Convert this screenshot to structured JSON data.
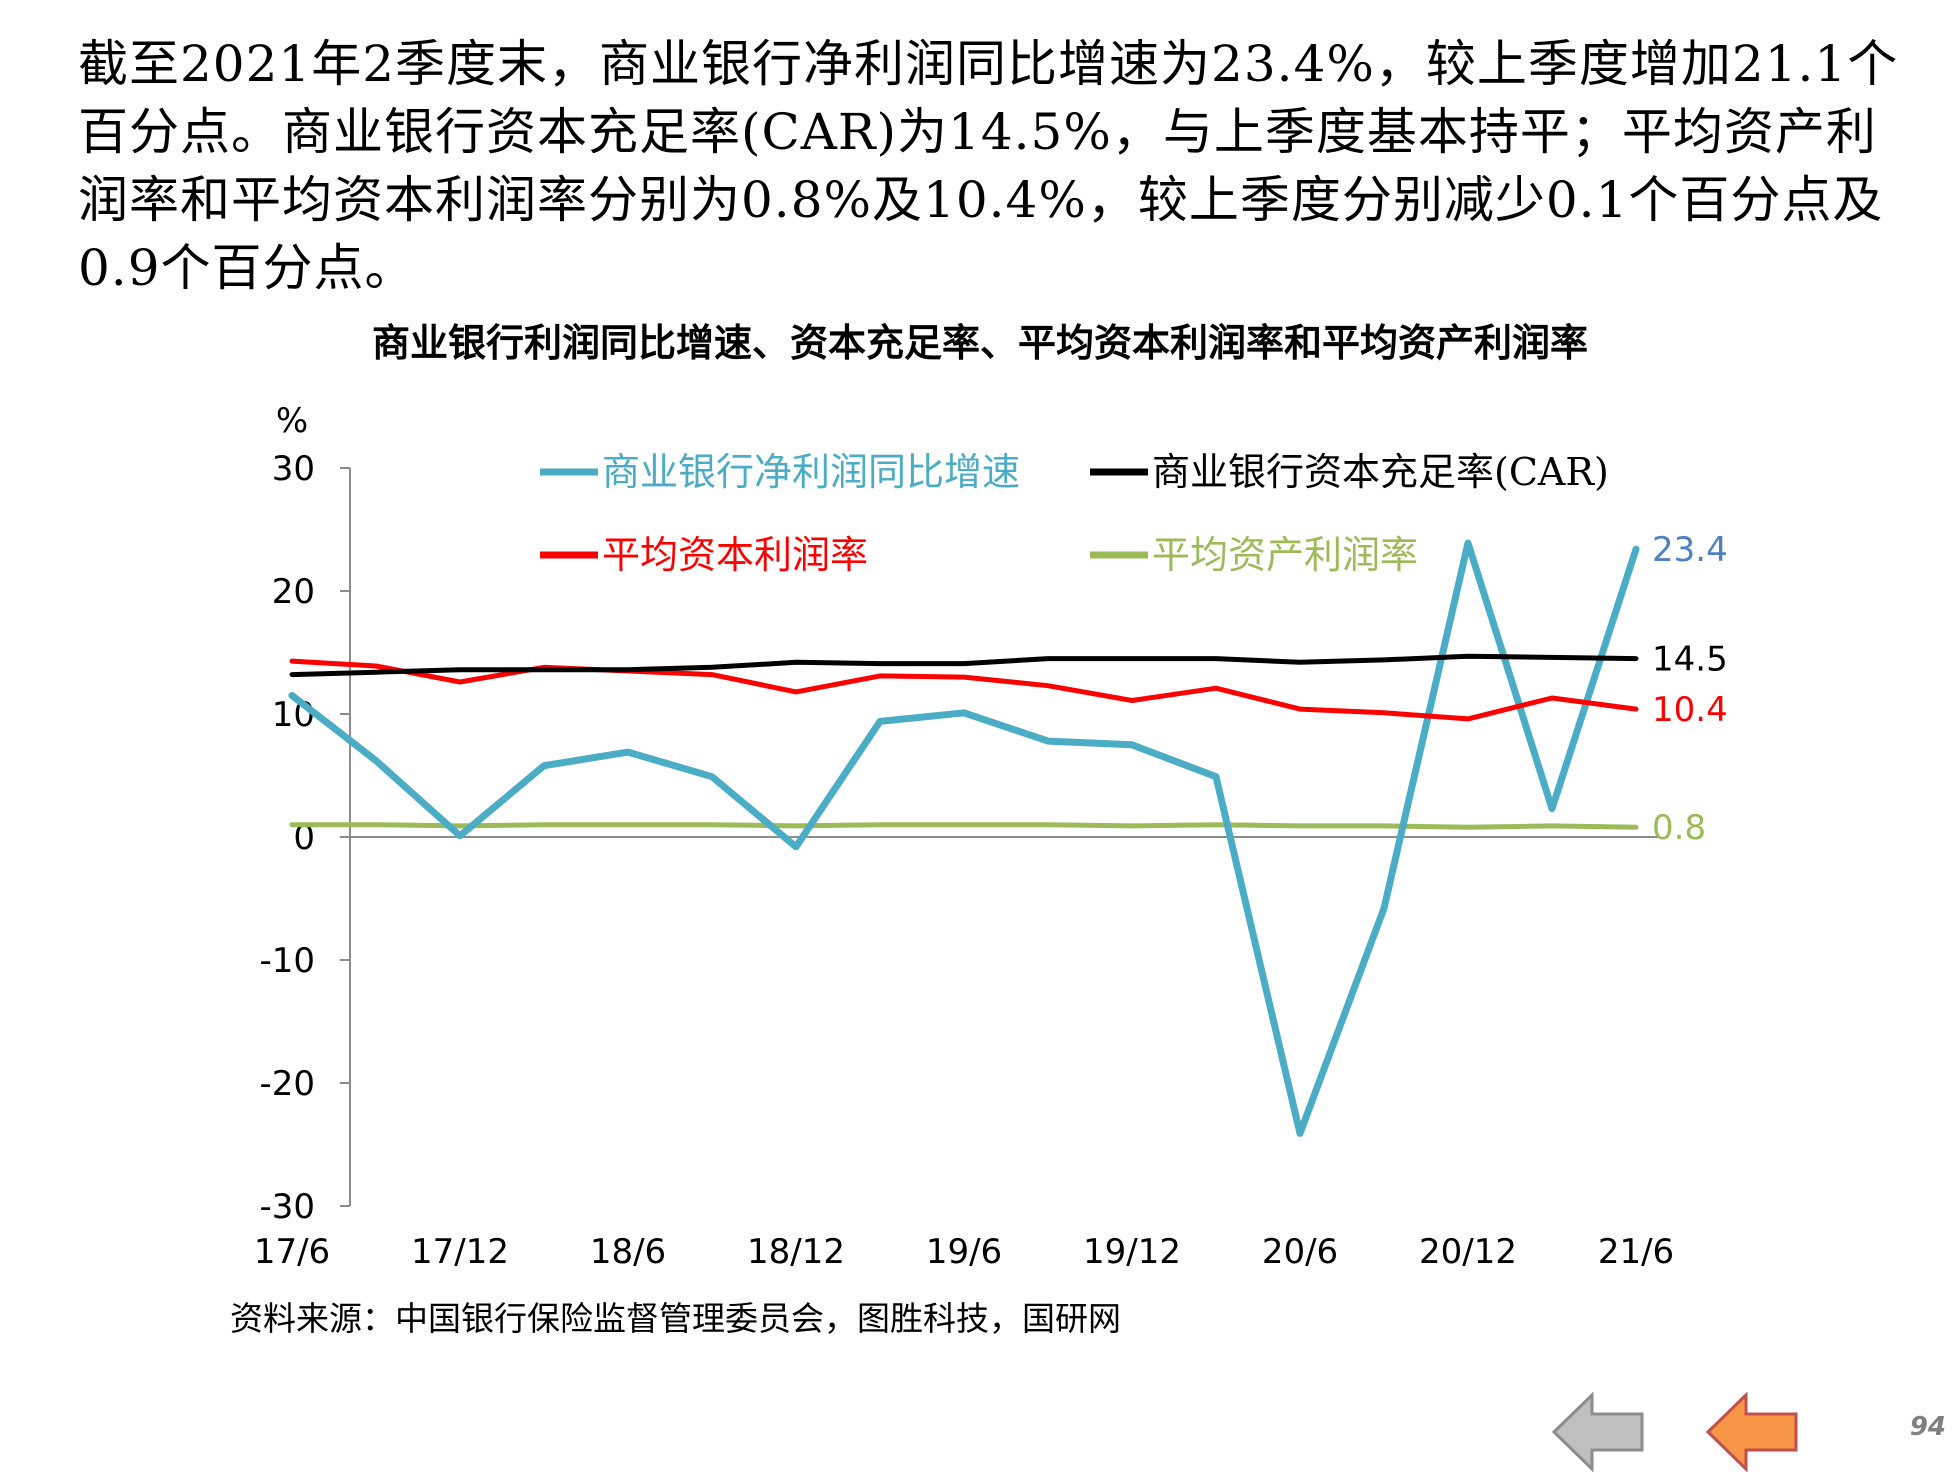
{
  "text": {
    "paragraph": "截至2021年2季度末，商业银行净利润同比增速为23.4%，较上季度增加21.1个百分点。商业银行资本充足率(CAR)为14.5%，与上季度基本持平；平均资产利润率和平均资本利润率分别为0.8%及10.4%，较上季度分别减少0.1个百分点及0.9个百分点。",
    "source": "资料来源：中国银行保险监督管理委员会，图胜科技，国研网",
    "page_number": "94"
  },
  "nav": {
    "prev_icon": "arrow-left-gray",
    "back_icon": "arrow-left-orange"
  },
  "chart_data": {
    "type": "line",
    "title": "商业银行利润同比增速、资本充足率、平均资本利润率和平均资产利润率",
    "ylabel": "%",
    "ylim": [
      -30,
      30
    ],
    "yticks": [
      30,
      20,
      10,
      0,
      -10,
      -20,
      -30
    ],
    "grid": false,
    "legend_position": "top",
    "x": [
      "17/6",
      "17/9",
      "17/12",
      "18/3",
      "18/6",
      "18/9",
      "18/12",
      "19/3",
      "19/6",
      "19/9",
      "19/12",
      "20/3",
      "20/6",
      "20/9",
      "20/12",
      "21/3",
      "21/6"
    ],
    "xtick_labels": [
      "17/6",
      "17/12",
      "18/6",
      "18/12",
      "19/6",
      "19/12",
      "20/6",
      "20/12",
      "21/6"
    ],
    "series": [
      {
        "name": "商业银行净利润同比增速",
        "color": "#4bacc6",
        "values": [
          11.5,
          6.2,
          0.1,
          5.8,
          6.9,
          4.9,
          -0.8,
          9.4,
          10.1,
          7.8,
          7.5,
          4.9,
          -24.1,
          -5.8,
          23.9,
          2.3,
          23.4
        ],
        "end_label": "23.4",
        "end_label_color": "#4f81bd"
      },
      {
        "name": "商业银行资本充足率(CAR)",
        "color": "#000000",
        "values": [
          13.2,
          13.4,
          13.6,
          13.6,
          13.6,
          13.8,
          14.2,
          14.1,
          14.1,
          14.5,
          14.5,
          14.5,
          14.2,
          14.4,
          14.7,
          14.6,
          14.5
        ],
        "end_label": "14.5",
        "end_label_color": "#000000"
      },
      {
        "name": "平均资本利润率",
        "color": "#ff0000",
        "values": [
          14.3,
          13.9,
          12.6,
          13.8,
          13.5,
          13.2,
          11.8,
          13.1,
          13.0,
          12.3,
          11.1,
          12.1,
          10.4,
          10.1,
          9.6,
          11.3,
          10.4
        ],
        "end_label": "10.4",
        "end_label_color": "#ff0000"
      },
      {
        "name": "平均资产利润率",
        "color": "#9bbb59",
        "values": [
          1.0,
          1.0,
          0.9,
          1.0,
          1.0,
          1.0,
          0.9,
          1.0,
          1.0,
          1.0,
          0.9,
          1.0,
          0.9,
          0.9,
          0.8,
          0.9,
          0.8
        ],
        "end_label": "0.8",
        "end_label_color": "#9bbb59"
      }
    ]
  }
}
